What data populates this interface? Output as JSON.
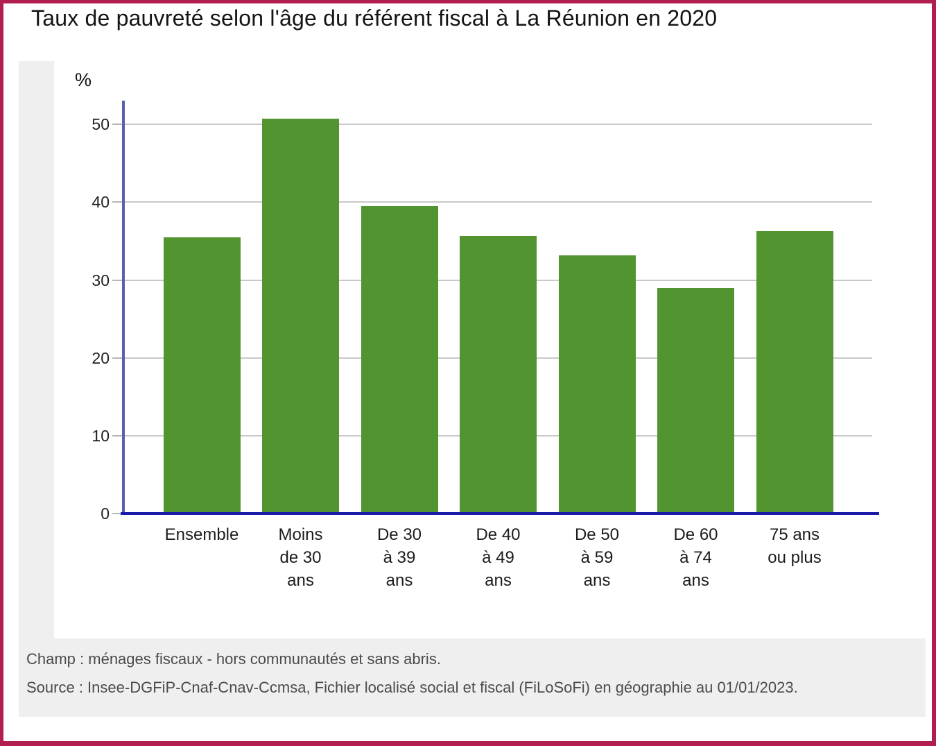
{
  "title": "Taux de pauvreté selon l'âge du référent fiscal à La Réunion en 2020",
  "chart_data": {
    "type": "bar",
    "title": "Taux de pauvreté selon l'âge du référent fiscal à La Réunion en 2020",
    "unit_label": "%",
    "xlabel": "",
    "ylabel": "%",
    "categories": [
      "Ensemble",
      "Moins de 30 ans",
      "De 30 à 39 ans",
      "De 40 à 49 ans",
      "De 50 à 59 ans",
      "De 60 à 74 ans",
      "75 ans ou plus"
    ],
    "category_lines": [
      [
        "Ensemble"
      ],
      [
        "Moins",
        "de 30",
        "ans"
      ],
      [
        "De 30",
        "à 39",
        "ans"
      ],
      [
        "De 40",
        "à 49",
        "ans"
      ],
      [
        "De 50",
        "à 59",
        "ans"
      ],
      [
        "De 60",
        "à 74",
        "ans"
      ],
      [
        "75 ans",
        "ou plus"
      ]
    ],
    "values": [
      35.5,
      50.7,
      39.5,
      35.7,
      33.2,
      29.0,
      36.3
    ],
    "ylim": [
      0,
      53
    ],
    "yticks": [
      0,
      10,
      20,
      30,
      40,
      50
    ],
    "grid": true,
    "legend": "none",
    "bar_color": "#52942f",
    "axis_color_y": "#5a60b0",
    "axis_color_x": "#1c1caa"
  },
  "footer": {
    "champ": "Champ : ménages fiscaux - hors communautés et sans abris.",
    "source": "Source : Insee-DGFiP-Cnaf-Cnav-Ccmsa, Fichier localisé social et fiscal (FiLoSoFi) en géographie au 01/01/2023."
  },
  "colors": {
    "page_border": "#b01f4f",
    "widget_background": "#efefef",
    "plot_background": "#ffffff",
    "gridline": "#c9c9c9",
    "bar": "#52942f",
    "y_axis": "#5a60b0",
    "x_axis": "#1c1caa"
  }
}
